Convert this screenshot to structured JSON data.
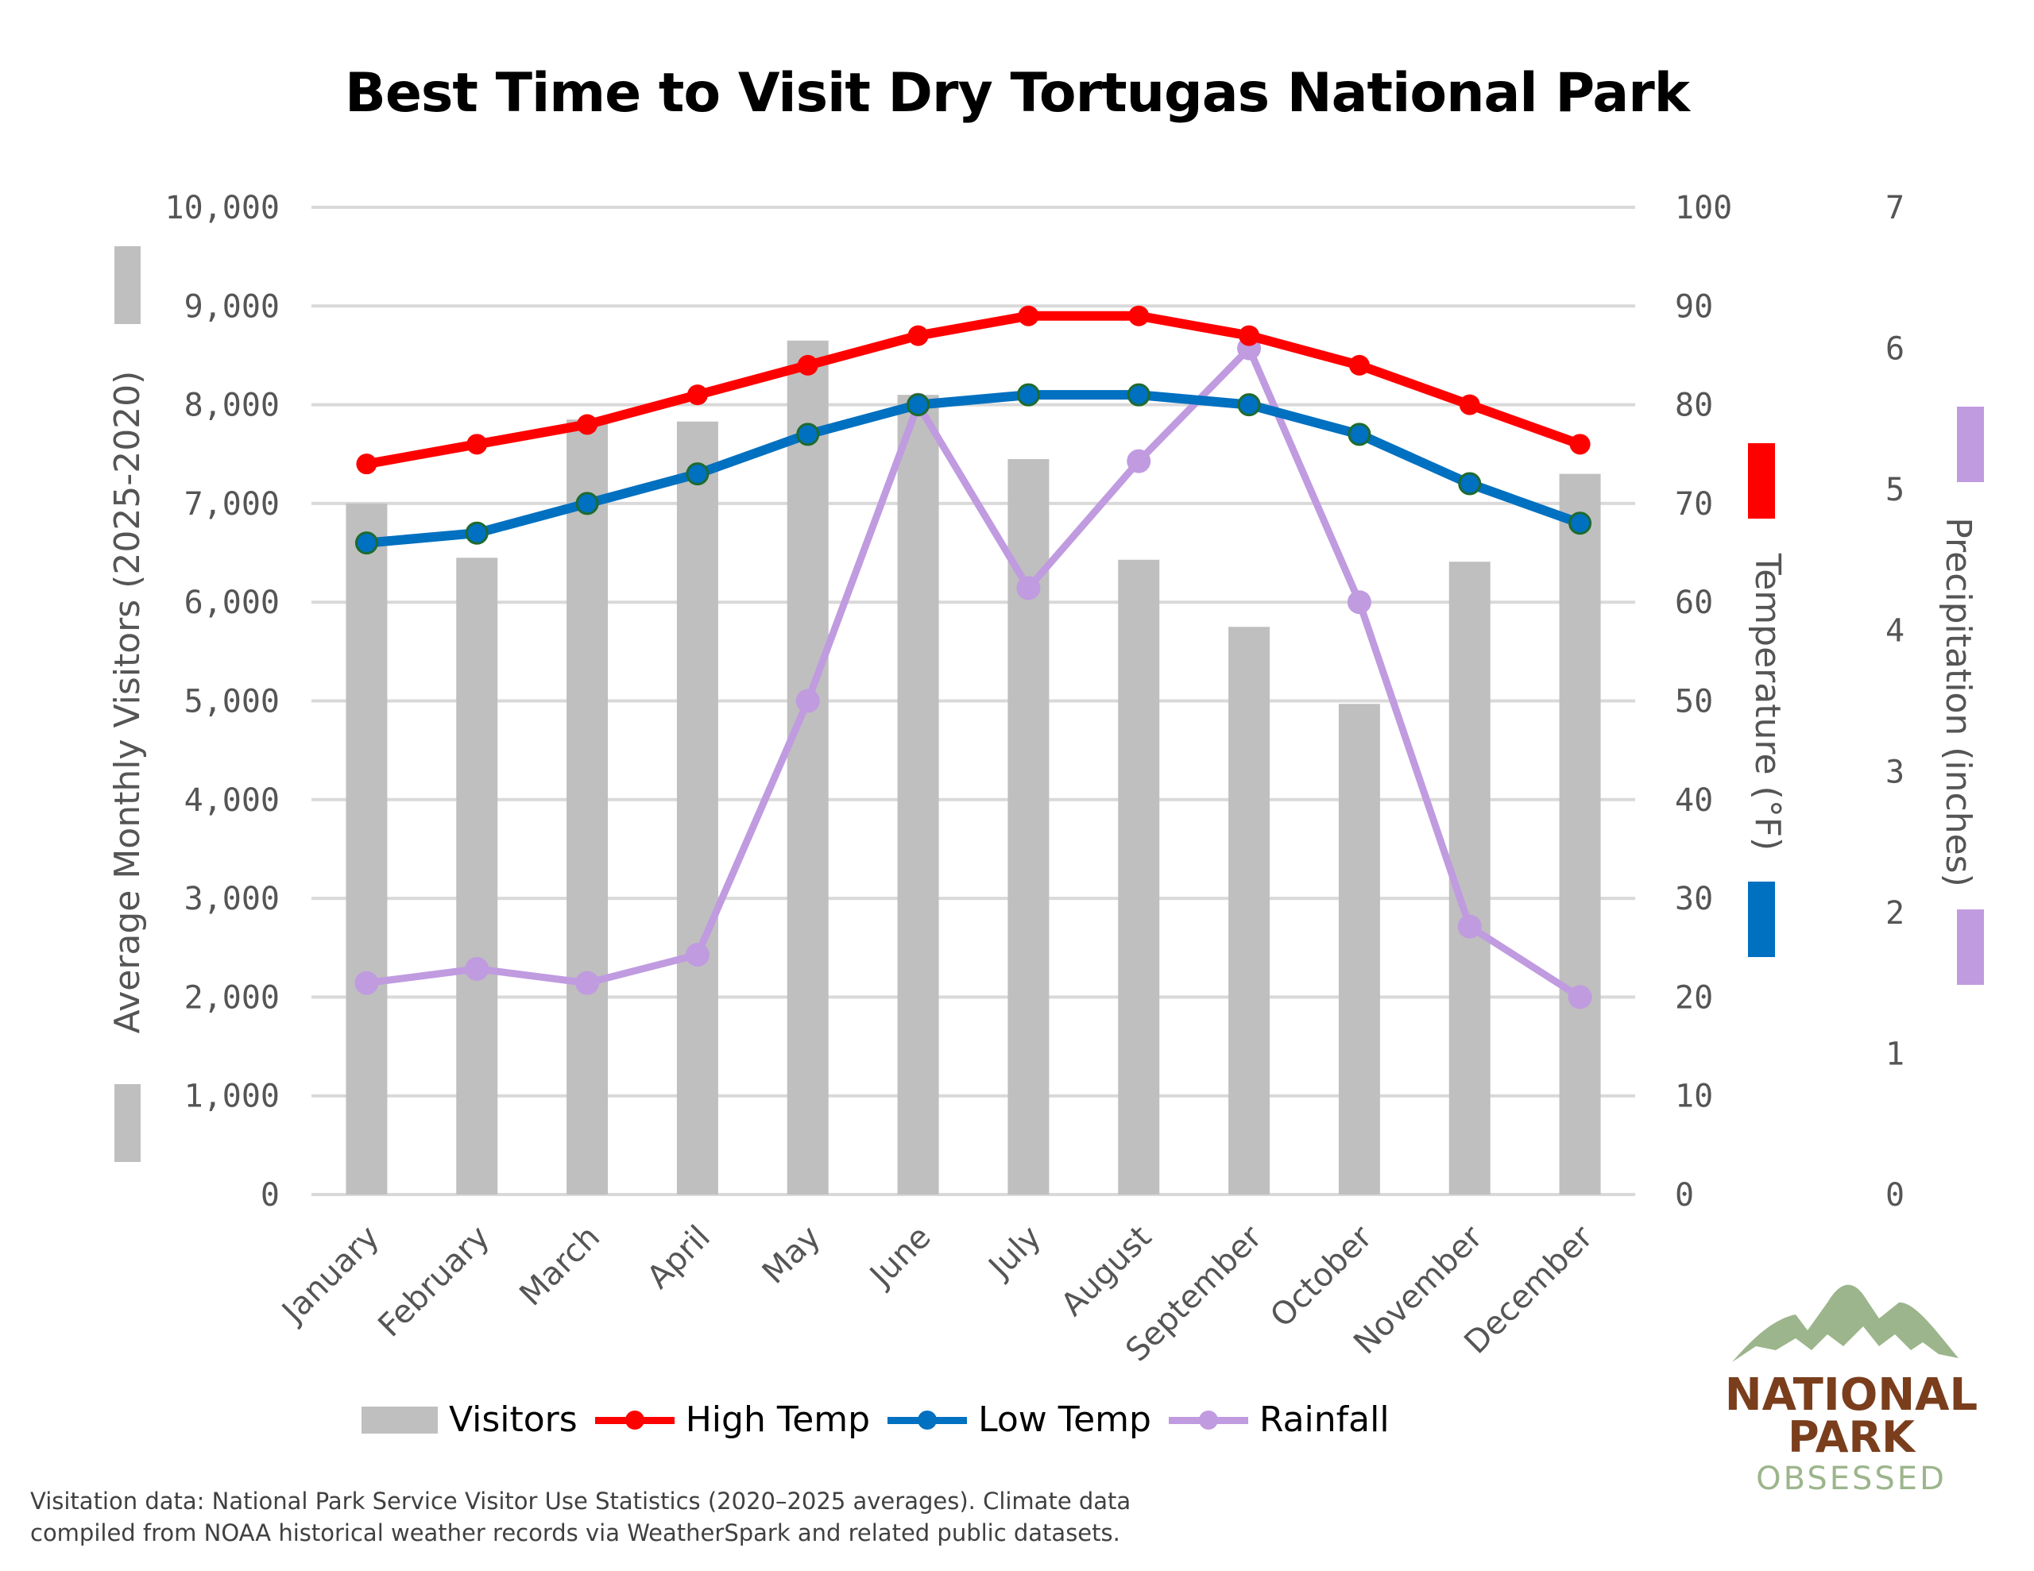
{
  "title": "Best Time to Visit Dry Tortugas National Park",
  "axes": {
    "left_title": "Average Monthly Visitors (2025-2020)",
    "left_ticks": [
      "0",
      "1,000",
      "2,000",
      "3,000",
      "4,000",
      "5,000",
      "6,000",
      "7,000",
      "8,000",
      "9,000",
      "10,000"
    ],
    "right_title": "Temperature (°F)",
    "right_ticks": [
      "0",
      "10",
      "20",
      "30",
      "40",
      "50",
      "60",
      "70",
      "80",
      "90",
      "100"
    ],
    "far_right_title": "Precipitation (inches)",
    "far_right_ticks": [
      "0",
      "1",
      "2",
      "3",
      "4",
      "5",
      "6",
      "7"
    ]
  },
  "legend": {
    "visitors": "Visitors",
    "high": "High Temp",
    "low": "Low Temp",
    "rain": "Rainfall"
  },
  "footnote": {
    "line1": "Visitation data: National Park Service Visitor Use Statistics (2020–2025 averages). Climate data",
    "line2": "compiled from NOAA historical weather records via WeatherSpark and related public datasets."
  },
  "logo": {
    "line1": "NATIONAL",
    "line2": "PARK",
    "line3": "OBSESSED"
  },
  "colors": {
    "visitors": "#bfbfbf",
    "high": "#ff0000",
    "low": "#0070c0",
    "low_marker_border": "#1e6b2e",
    "rain": "#c09be0",
    "grid": "#d9d9d9",
    "logo_green": "#9cb58c",
    "logo_brown": "#7a3e1d"
  },
  "chart_data": {
    "type": "bar+line",
    "title": "Best Time to Visit Dry Tortugas National Park",
    "categories": [
      "January",
      "February",
      "March",
      "April",
      "May",
      "June",
      "July",
      "August",
      "September",
      "October",
      "November",
      "December"
    ],
    "series": [
      {
        "name": "Visitors",
        "type": "bar",
        "axis": "left",
        "values": [
          7000,
          6450,
          7850,
          7830,
          8650,
          8100,
          7450,
          6430,
          5750,
          4970,
          6410,
          7300
        ]
      },
      {
        "name": "High Temp",
        "type": "line",
        "axis": "right",
        "values": [
          74,
          76,
          78,
          81,
          84,
          87,
          89,
          89,
          87,
          84,
          80,
          76
        ]
      },
      {
        "name": "Low Temp",
        "type": "line",
        "axis": "right",
        "values": [
          66,
          67,
          70,
          73,
          77,
          80,
          81,
          81,
          80,
          77,
          72,
          68
        ]
      },
      {
        "name": "Rainfall",
        "type": "line",
        "axis": "far_right",
        "values": [
          1.5,
          1.6,
          1.5,
          1.7,
          3.5,
          5.6,
          4.3,
          5.2,
          6.0,
          4.2,
          1.9,
          1.4
        ]
      }
    ],
    "ylabel_left": "Average Monthly Visitors (2025-2020)",
    "ylim_left": [
      0,
      10000
    ],
    "ylabel_right": "Temperature (°F)",
    "ylim_right": [
      0,
      100
    ],
    "ylabel_far_right": "Precipitation (inches)",
    "ylim_far_right": [
      0,
      7
    ],
    "grid": true,
    "legend_position": "bottom"
  }
}
